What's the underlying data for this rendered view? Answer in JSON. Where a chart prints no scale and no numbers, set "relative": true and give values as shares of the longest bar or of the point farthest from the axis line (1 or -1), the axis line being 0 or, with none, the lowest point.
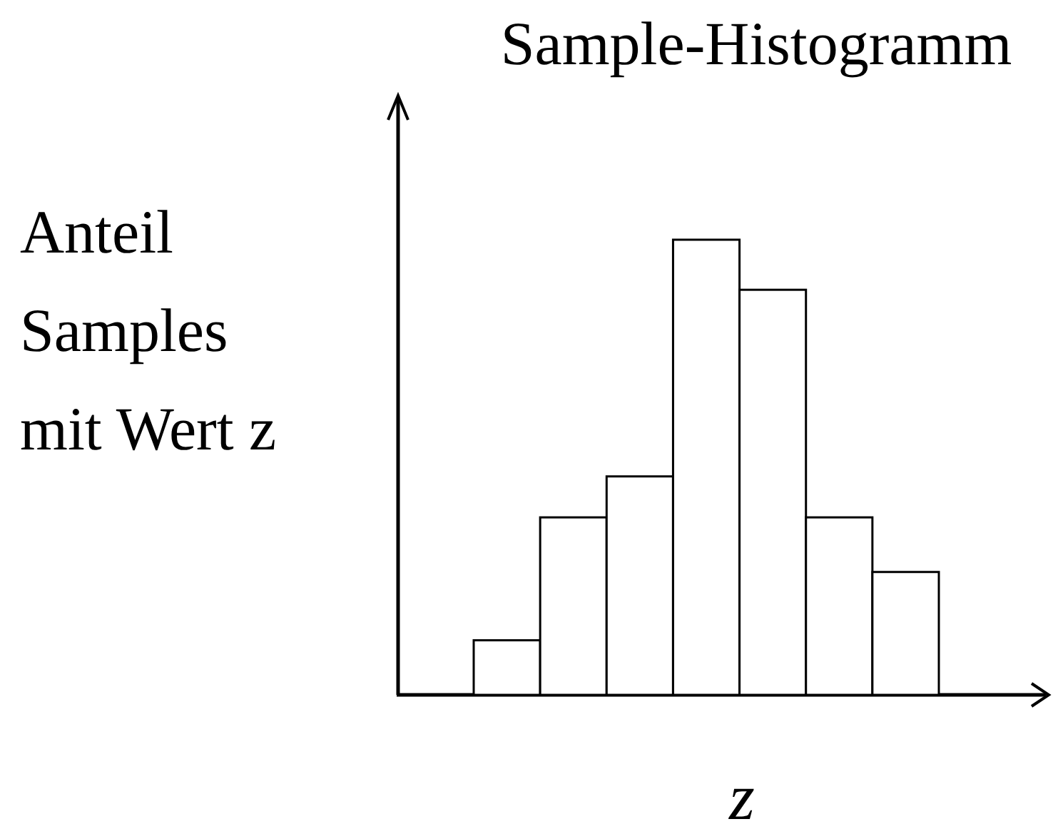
{
  "chart_data": {
    "type": "bar",
    "title": "Sample-Histogramm",
    "ylabel": "Anteil\nSamples\nmit Wert z",
    "xlabel": "z",
    "relative": true,
    "categories": [
      null,
      null,
      null,
      null,
      null,
      null,
      null
    ],
    "values": [
      0.12,
      0.39,
      0.48,
      1,
      0.89,
      0.39,
      0.27
    ],
    "color": "#ffffff"
  }
}
